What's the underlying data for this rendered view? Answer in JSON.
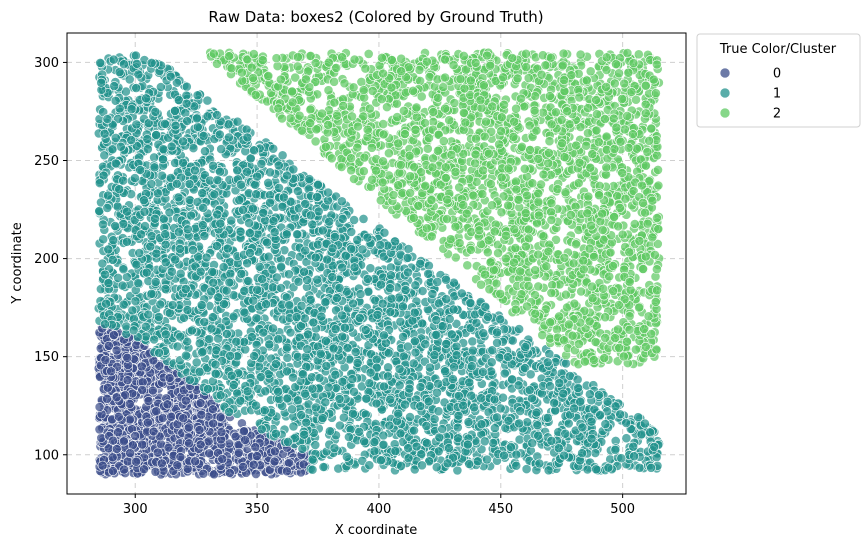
{
  "chart_data": {
    "type": "scatter",
    "title": "Raw Data: boxes2 (Colored by Ground Truth)",
    "xlabel": "X coordinate",
    "ylabel": "Y coordinate",
    "xlim": [
      272,
      526
    ],
    "ylim": [
      80,
      315
    ],
    "x_ticks": [
      300,
      350,
      400,
      450,
      500
    ],
    "y_ticks": [
      100,
      150,
      200,
      250,
      300
    ],
    "grid": true,
    "legend": {
      "title": "True Color/Cluster",
      "placement": "outside-top-right",
      "entries": [
        "0",
        "1",
        "2"
      ]
    },
    "series": [
      {
        "name": "0",
        "color": "#3b4d8a",
        "region": {
          "xs": [
            285,
            285,
            290,
            305,
            345,
            372,
            372
          ],
          "ys": [
            90,
            166,
            166,
            155,
            115,
            100,
            90
          ]
        },
        "count": 1300
      },
      {
        "name": "1",
        "color": "#21918c",
        "region": {
          "xs": [
            285,
            305,
            385,
            515,
            515,
            372,
            372,
            345,
            305,
            290,
            285
          ],
          "ys": [
            302,
            305,
            230,
            112,
            92,
            92,
            100,
            115,
            155,
            166,
            166
          ]
        },
        "count": 3800
      },
      {
        "name": "2",
        "color": "#5ec962",
        "region": {
          "xs": [
            328,
            515,
            515,
            505,
            480
          ],
          "ys": [
            305,
            305,
            150,
            146,
            146
          ]
        },
        "count": 2600
      }
    ]
  }
}
